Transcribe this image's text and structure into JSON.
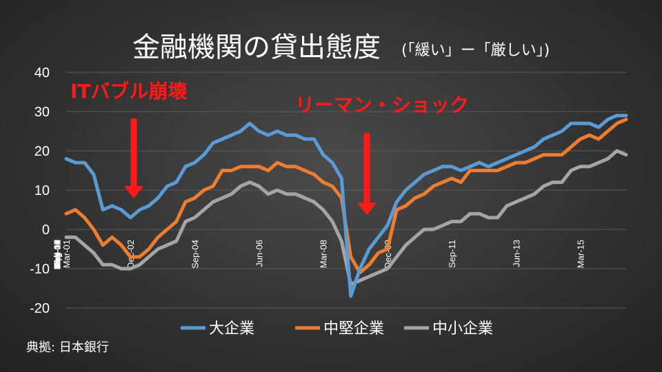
{
  "chart_data": {
    "type": "line",
    "title": "金融機関の貸出態度",
    "subtitle": "(「緩い」ー「厳しい」)",
    "x": [
      "Mar-01",
      "Jun-01",
      "Sep-01",
      "Dec-01",
      "Mar-02",
      "Jun-02",
      "Sep-02",
      "Dec-02",
      "Mar-03",
      "Jun-03",
      "Sep-03",
      "Dec-03",
      "Mar-04",
      "Jun-04",
      "Sep-04",
      "Dec-04",
      "Mar-05",
      "Jun-05",
      "Sep-05",
      "Dec-05",
      "Mar-06",
      "Jun-06",
      "Sep-06",
      "Dec-06",
      "Mar-07",
      "Jun-07",
      "Sep-07",
      "Dec-07",
      "Mar-08",
      "Jun-08",
      "Sep-08",
      "Dec-08",
      "Mar-09",
      "Jun-09",
      "Sep-09",
      "Dec-09",
      "Mar-10",
      "Jun-10",
      "Sep-10",
      "Dec-10",
      "Mar-11",
      "Jun-11",
      "Sep-11",
      "Dec-11",
      "Mar-12",
      "Jun-12",
      "Sep-12",
      "Dec-12",
      "Mar-13",
      "Jun-13",
      "Sep-13",
      "Dec-13",
      "Mar-14",
      "Jun-14",
      "Sep-14",
      "Dec-14",
      "Mar-15",
      "Jun-15",
      "Sep-15",
      "Dec-15",
      "Mar-16",
      "Jun-16"
    ],
    "x_tick_labels": [
      "Mar-01",
      "Oct-01",
      "May-02",
      "Dec-02",
      "Jul-03",
      "Feb-04",
      "Sep-04",
      "Apr-05",
      "Nov-05",
      "Jun-06",
      "Jan-07",
      "Aug-07",
      "Mar-08",
      "Oct-08",
      "May-09",
      "Dec-09",
      "Jul-10",
      "Feb-11",
      "Sep-11",
      "Apr-12",
      "Nov-12",
      "Jun-13",
      "Jan-14",
      "Aug-14",
      "Mar-15",
      "Oct-15",
      "May-16"
    ],
    "ylim": [
      -20,
      40
    ],
    "yticks": [
      40,
      30,
      20,
      10,
      0,
      -10,
      -20
    ],
    "series": [
      {
        "name": "大企業",
        "color": "#5b9bd5",
        "values": [
          18,
          17,
          17,
          14,
          5,
          6,
          5,
          3,
          5,
          6,
          8,
          11,
          12,
          16,
          17,
          19,
          22,
          23,
          24,
          25,
          27,
          25,
          24,
          25,
          24,
          24,
          23,
          23,
          19,
          17,
          13,
          -17,
          -10,
          -5,
          -2,
          1,
          7,
          10,
          12,
          14,
          15,
          16,
          16,
          15,
          16,
          17,
          16,
          17,
          18,
          19,
          20,
          21,
          23,
          24,
          25,
          27,
          27,
          27,
          26,
          28,
          29,
          29
        ]
      },
      {
        "name": "中堅企業",
        "color": "#ed7d31",
        "values": [
          4,
          5,
          3,
          0,
          -4,
          -2,
          -4,
          -7,
          -7,
          -5,
          -2,
          0,
          2,
          7,
          8,
          10,
          11,
          15,
          15,
          16,
          16,
          16,
          15,
          17,
          16,
          16,
          15,
          14,
          12,
          11,
          8,
          -7,
          -11,
          -9,
          -6,
          -5,
          5,
          6,
          8,
          9,
          11,
          12,
          13,
          12,
          15,
          15,
          15,
          15,
          16,
          17,
          17,
          18,
          19,
          19,
          19,
          21,
          23,
          24,
          23,
          25,
          27,
          28
        ]
      },
      {
        "name": "中小企業",
        "color": "#a5a5a5",
        "values": [
          -2,
          -2,
          -4,
          -6,
          -9,
          -9,
          -10,
          -10,
          -9,
          -7,
          -5,
          -4,
          -3,
          2,
          3,
          5,
          7,
          8,
          9,
          11,
          12,
          11,
          9,
          10,
          9,
          9,
          8,
          7,
          5,
          2,
          -3,
          -14,
          -13,
          -12,
          -11,
          -10,
          -7,
          -4,
          -2,
          0,
          0,
          1,
          2,
          2,
          4,
          4,
          3,
          3,
          6,
          7,
          8,
          9,
          11,
          12,
          12,
          15,
          16,
          16,
          17,
          18,
          20,
          19
        ]
      }
    ],
    "annotations": [
      {
        "text": "ITバブル崩壊",
        "at_x": "Dec-02",
        "arrow": "down"
      },
      {
        "text": "リーマン・ショック",
        "at_x": "Jun-09",
        "arrow": "down"
      }
    ],
    "legend_position": "bottom",
    "grid": true,
    "source": "典拠: 日本銀行"
  }
}
